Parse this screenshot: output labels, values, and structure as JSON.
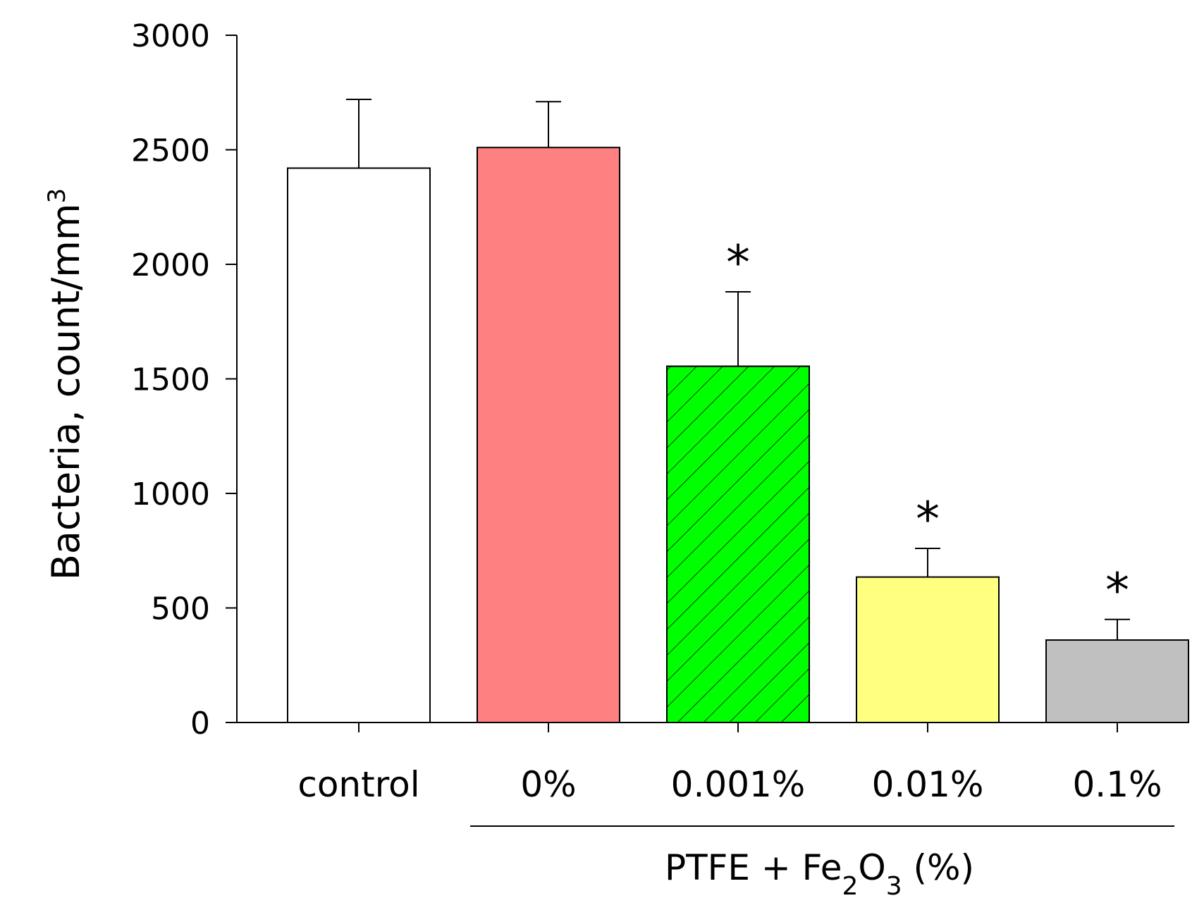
{
  "chart_data": {
    "type": "bar",
    "title": "",
    "xlabel": "",
    "ylabel": {
      "main": "Bacteria, count/mm",
      "superscript": "3"
    },
    "ylim": [
      0,
      3000
    ],
    "yticks": [
      0,
      500,
      1000,
      1500,
      2000,
      2500,
      3000
    ],
    "grid": false,
    "categories": [
      "control",
      "0%",
      "0.001%",
      "0.01%",
      "0.1%"
    ],
    "values": [
      2420,
      2510,
      1555,
      635,
      360
    ],
    "error_upper": [
      300,
      200,
      325,
      125,
      90
    ],
    "significant": [
      false,
      false,
      true,
      true,
      true
    ],
    "significance_marker": "*",
    "bar_colors": [
      "#ffffff",
      "#ff8080",
      "#00ff00",
      "#ffff80",
      "#c0c0c0"
    ],
    "bar_hatched": [
      false,
      false,
      true,
      false,
      false
    ],
    "group_label": {
      "prefix": "PTFE + Fe",
      "sub1": "2",
      "middle": "O",
      "sub2": "3",
      "suffix": " (%)",
      "covers_categories": [
        "0%",
        "0.001%",
        "0.01%",
        "0.1%"
      ]
    }
  }
}
